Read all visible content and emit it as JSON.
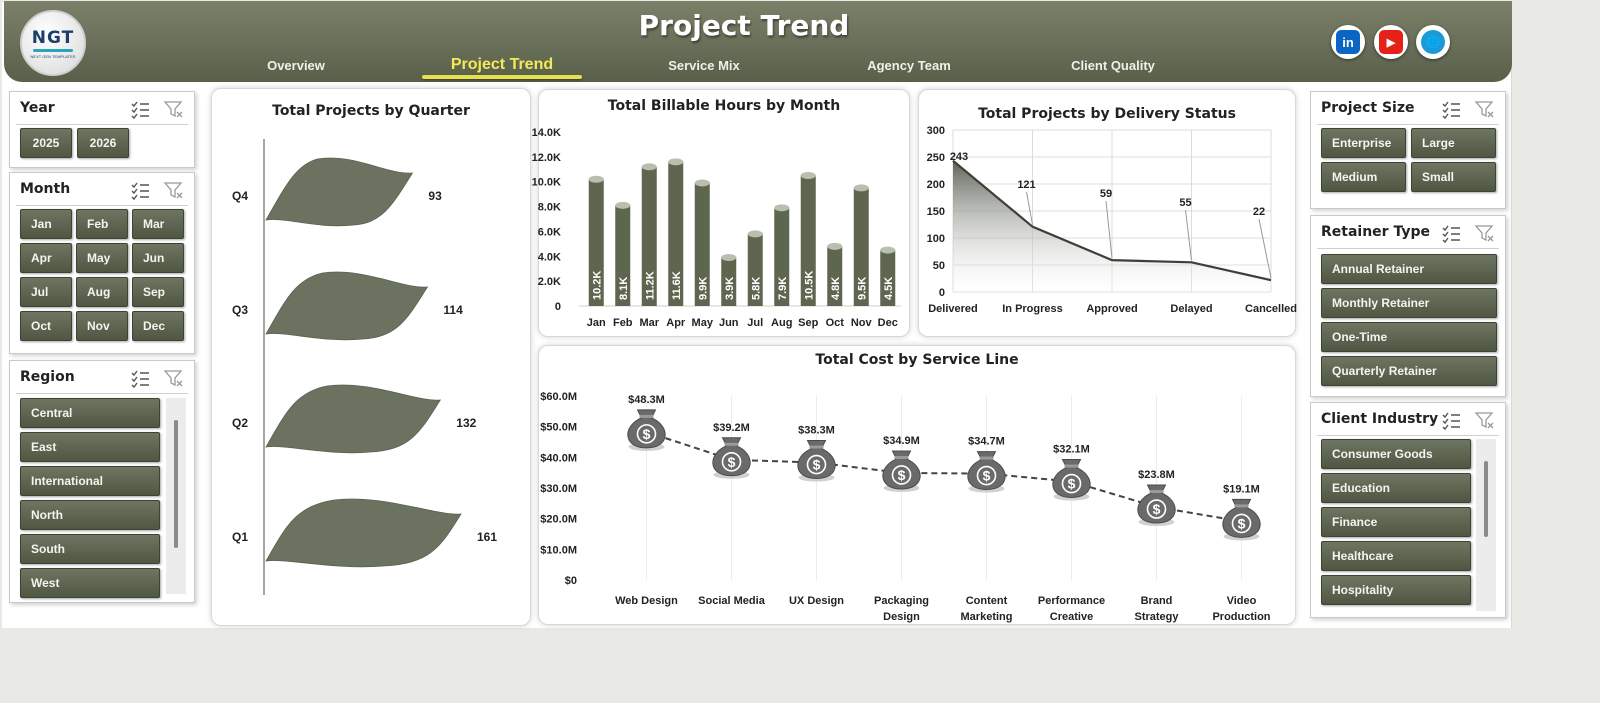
{
  "header": {
    "logo_text": "NGT",
    "logo_sub": "NEXT GEN TEMPLATES",
    "title": "Project Trend",
    "nav": [
      "Overview",
      "Project Trend",
      "Service Mix",
      "Agency Team",
      "Client Quality"
    ],
    "active_nav": "Project Trend",
    "social": [
      {
        "name": "linkedin-icon",
        "label": "in",
        "color": "#0a66c2"
      },
      {
        "name": "youtube-icon",
        "label": "▶",
        "color": "#e62117"
      },
      {
        "name": "website-icon",
        "label": "🌐",
        "color": "#1a9bd7"
      }
    ]
  },
  "slicers": {
    "year": {
      "title": "Year",
      "items": [
        "2025",
        "2026"
      ]
    },
    "month": {
      "title": "Month",
      "items": [
        "Jan",
        "Feb",
        "Mar",
        "Apr",
        "May",
        "Jun",
        "Jul",
        "Aug",
        "Sep",
        "Oct",
        "Nov",
        "Dec"
      ]
    },
    "region": {
      "title": "Region",
      "items": [
        "Central",
        "East",
        "International",
        "North",
        "South",
        "West"
      ]
    },
    "project_size": {
      "title": "Project Size",
      "items": [
        "Enterprise",
        "Large",
        "Medium",
        "Small"
      ]
    },
    "retainer_type": {
      "title": "Retainer Type",
      "items": [
        "Annual Retainer",
        "Monthly Retainer",
        "One-Time",
        "Quarterly Retainer"
      ]
    },
    "client_industry": {
      "title": "Client Industry",
      "items": [
        "Consumer Goods",
        "Education",
        "Finance",
        "Healthcare",
        "Hospitality"
      ]
    }
  },
  "chart_data": [
    {
      "type": "bar",
      "title": "Total Projects by Quarter",
      "categories": [
        "Q4",
        "Q3",
        "Q2",
        "Q1"
      ],
      "values": [
        93,
        114,
        132,
        161
      ],
      "orientation": "horizontal",
      "color": "#6b7360"
    },
    {
      "type": "bar",
      "title": "Total Billable Hours by Month",
      "categories": [
        "Jan",
        "Feb",
        "Mar",
        "Apr",
        "May",
        "Jun",
        "Jul",
        "Aug",
        "Sep",
        "Oct",
        "Nov",
        "Dec"
      ],
      "values": [
        10.2,
        8.1,
        11.2,
        11.6,
        9.9,
        3.9,
        5.8,
        7.9,
        10.5,
        4.8,
        9.5,
        4.5
      ],
      "value_labels": [
        "10.2K",
        "8.1K",
        "11.2K",
        "11.6K",
        "9.9K",
        "3.9K",
        "5.8K",
        "7.9K",
        "10.5K",
        "4.8K",
        "9.5K",
        "4.5K"
      ],
      "yticks": [
        "14.0K",
        "12.0K",
        "10.0K",
        "8.0K",
        "6.0K",
        "4.0K",
        "2.0K",
        "0"
      ],
      "ylim": [
        0,
        14
      ],
      "color": "#5e6650"
    },
    {
      "type": "area",
      "title": "Total Projects by Delivery Status",
      "categories": [
        "Delivered",
        "In Progress",
        "Approved",
        "Delayed",
        "Cancelled"
      ],
      "values": [
        243,
        121,
        59,
        55,
        22
      ],
      "yticks": [
        "300",
        "250",
        "200",
        "150",
        "100",
        "50",
        "0"
      ],
      "ylim": [
        0,
        300
      ],
      "grid": true
    },
    {
      "type": "line",
      "title": "Total Cost by Service Line",
      "categories": [
        "Web Design",
        "Social Media",
        "UX Design",
        "Packaging Design",
        "Content Marketing",
        "Performance Creative",
        "Brand Strategy",
        "Video Production"
      ],
      "values": [
        48.3,
        39.2,
        38.3,
        34.9,
        34.7,
        32.1,
        23.8,
        19.1
      ],
      "value_labels": [
        "$48.3M",
        "$39.2M",
        "$38.3M",
        "$34.9M",
        "$34.7M",
        "$32.1M",
        "$23.8M",
        "$19.1M"
      ],
      "yticks": [
        "$60.0M",
        "$50.0M",
        "$40.0M",
        "$30.0M",
        "$20.0M",
        "$10.0M",
        "$0"
      ],
      "ylim": [
        0,
        60
      ],
      "marker": "money-bag"
    }
  ]
}
